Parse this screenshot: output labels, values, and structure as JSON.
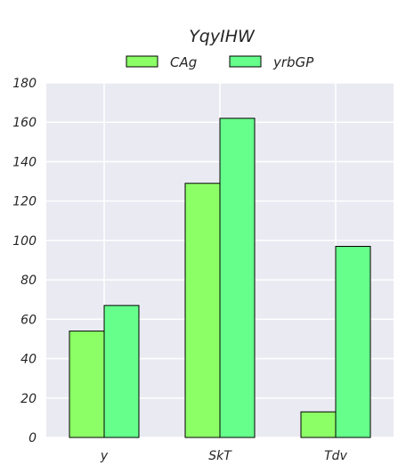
{
  "chart_data": {
    "type": "bar",
    "title": "YqyIHW",
    "xlabel": "",
    "ylabel": "",
    "categories": [
      "y",
      "SkT",
      "Tdv"
    ],
    "series": [
      {
        "name": "CAg",
        "values": [
          54,
          129,
          13
        ],
        "color": "#8cff66"
      },
      {
        "name": "yrbGP",
        "values": [
          67,
          162,
          97
        ],
        "color": "#66ff8c"
      }
    ],
    "ylim": [
      0,
      180
    ],
    "yticks": [
      "0",
      "20",
      "40",
      "60",
      "80",
      "100",
      "120",
      "140",
      "160",
      "180"
    ],
    "grid": true,
    "legend_position": "top-center",
    "background_color": "#eaeaf2"
  }
}
